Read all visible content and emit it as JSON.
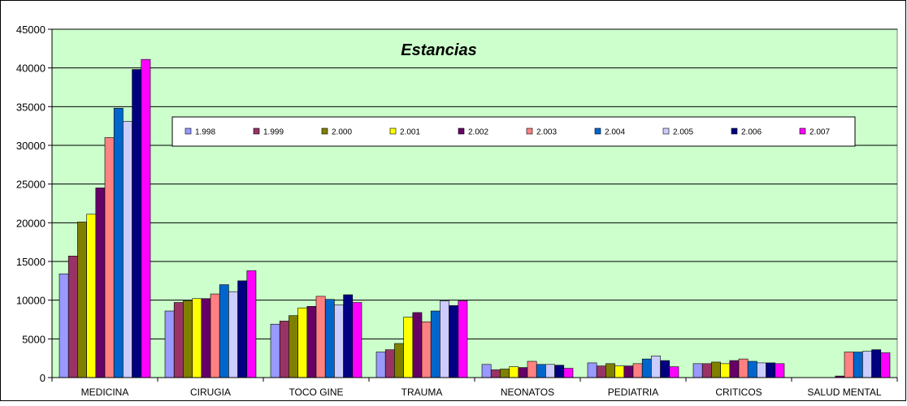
{
  "chart_data": {
    "type": "bar",
    "title": "Estancias",
    "xlabel": "",
    "ylabel": "",
    "ylim": [
      0,
      45000
    ],
    "yticks": [
      0,
      5000,
      10000,
      15000,
      20000,
      25000,
      30000,
      35000,
      40000,
      45000
    ],
    "grid": true,
    "legend_position": "top",
    "plot_background": "#CCFFCC",
    "categories": [
      "MEDICINA",
      "CIRUGIA",
      "TOCO GINE",
      "TRAUMA",
      "NEONATOS",
      "PEDIATRIA",
      "CRITICOS",
      "SALUD MENTAL"
    ],
    "series": [
      {
        "name": "1.998",
        "color": "#9999FF",
        "values": [
          13400,
          8600,
          6900,
          3300,
          1700,
          1900,
          1800,
          0
        ]
      },
      {
        "name": "1.999",
        "color": "#993366",
        "values": [
          15700,
          9700,
          7300,
          3600,
          1000,
          1500,
          1800,
          0
        ]
      },
      {
        "name": "2.000",
        "color": "#808000",
        "values": [
          20100,
          9900,
          8000,
          4400,
          1100,
          1800,
          2000,
          0
        ]
      },
      {
        "name": "2.001",
        "color": "#FFFF00",
        "values": [
          21100,
          10200,
          9000,
          7800,
          1400,
          1500,
          1800,
          0
        ]
      },
      {
        "name": "2.002",
        "color": "#660066",
        "values": [
          24500,
          10200,
          9200,
          8400,
          1300,
          1500,
          2200,
          200
        ]
      },
      {
        "name": "2.003",
        "color": "#FF8080",
        "values": [
          31000,
          10800,
          10500,
          7200,
          2100,
          1800,
          2400,
          3300
        ]
      },
      {
        "name": "2.004",
        "color": "#0066CC",
        "values": [
          34800,
          12000,
          10100,
          8600,
          1700,
          2400,
          2100,
          3300
        ]
      },
      {
        "name": "2.005",
        "color": "#CCCCFF",
        "values": [
          33100,
          11100,
          9400,
          9900,
          1700,
          2800,
          1900,
          3400
        ]
      },
      {
        "name": "2.006",
        "color": "#000080",
        "values": [
          39800,
          12500,
          10700,
          9300,
          1600,
          2200,
          1900,
          3600
        ]
      },
      {
        "name": "2.007",
        "color": "#FF00FF",
        "values": [
          41100,
          13800,
          9700,
          9900,
          1200,
          1400,
          1800,
          3200
        ]
      }
    ]
  }
}
